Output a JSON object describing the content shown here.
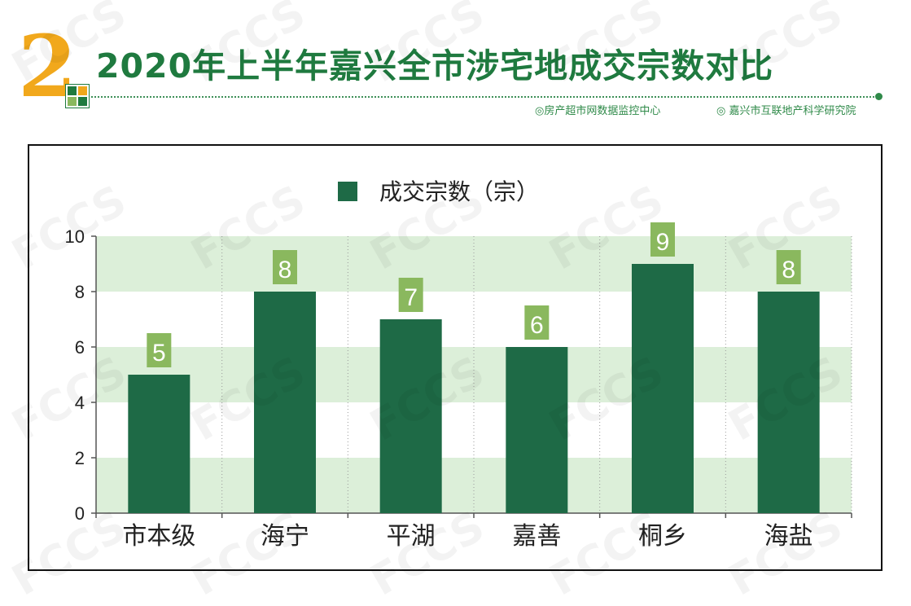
{
  "header": {
    "number": "2",
    "title": "2020年上半年嘉兴全市涉宅地成交宗数对比",
    "source_left": "◎房产超市网数据监控中心",
    "source_right": "◎ 嘉兴市互联地产科学研究院",
    "accent_green": "#1f7a3f",
    "accent_orange": "#f1a81c"
  },
  "watermark": {
    "text": "FCCS"
  },
  "chart_data": {
    "type": "bar",
    "categories": [
      "市本级",
      "海宁",
      "平湖",
      "嘉善",
      "桐乡",
      "海盐"
    ],
    "series": [
      {
        "name": "成交宗数（宗）",
        "values": [
          5,
          8,
          7,
          6,
          9,
          8
        ],
        "color": "#1e6a46"
      }
    ],
    "ylim": [
      0,
      10
    ],
    "yticks": [
      "0",
      "2",
      "4",
      "6",
      "8",
      "10"
    ],
    "data_labels": [
      "5",
      "8",
      "7",
      "6",
      "9",
      "8"
    ],
    "band_color": "#dcefd9",
    "label_bg": "#8ab85e",
    "legend": "top-center",
    "grid": "alternating horizontal bands, dotted vertical separators"
  }
}
